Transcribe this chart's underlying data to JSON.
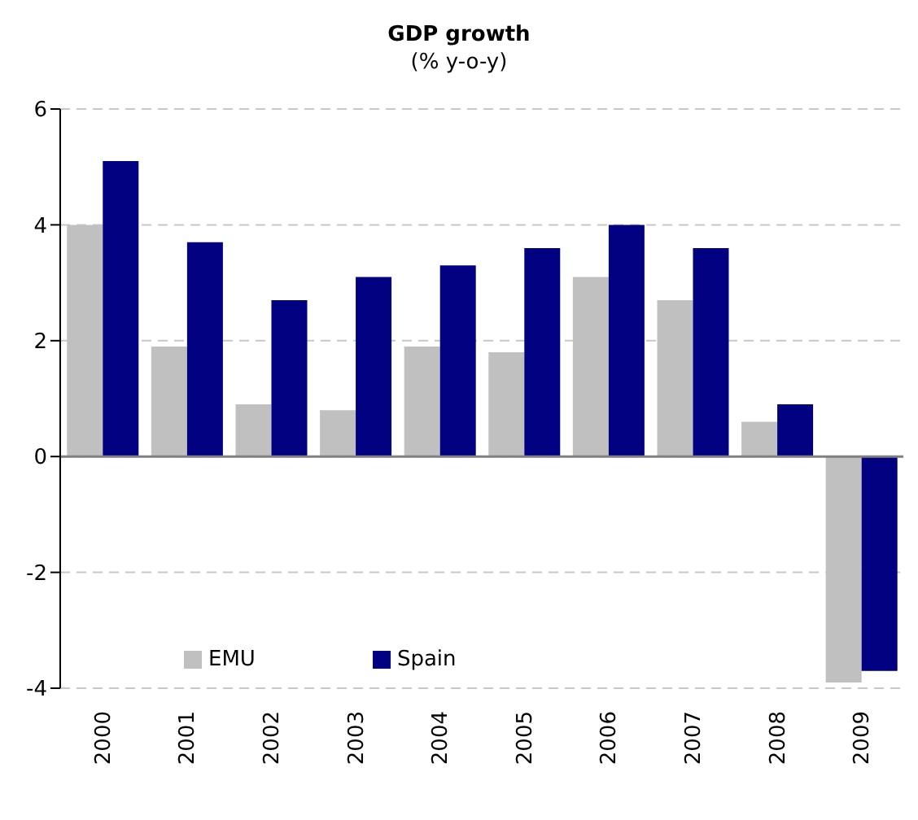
{
  "chart_data": {
    "type": "bar",
    "title": "GDP growth",
    "subtitle": "(% y-o-y)",
    "categories": [
      "2000",
      "2001",
      "2002",
      "2003",
      "2004",
      "2005",
      "2006",
      "2007",
      "2008",
      "2009"
    ],
    "series": [
      {
        "name": "EMU",
        "color": "#c0c0c0",
        "values": [
          4.0,
          1.9,
          0.9,
          0.8,
          1.9,
          1.8,
          3.1,
          2.7,
          0.6,
          -3.9
        ]
      },
      {
        "name": "Spain",
        "color": "#000080",
        "values": [
          5.1,
          3.7,
          2.7,
          3.1,
          3.3,
          3.6,
          4.0,
          3.6,
          0.9,
          -3.7
        ]
      }
    ],
    "ylim": [
      -4,
      6
    ],
    "yticks": [
      -4,
      -2,
      0,
      2,
      4,
      6
    ],
    "grid": "y",
    "legend": "bottom left"
  }
}
